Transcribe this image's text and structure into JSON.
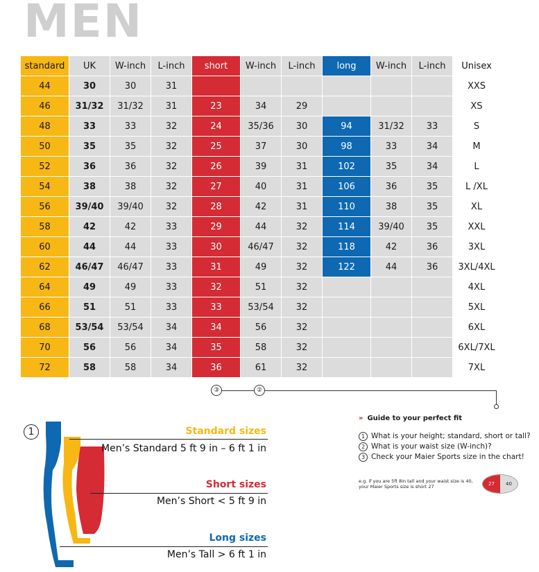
{
  "title": "MEN",
  "table": {
    "headers": [
      "standard",
      "UK",
      "W-inch",
      "L-inch",
      "short",
      "W-inch",
      "L-inch",
      "long",
      "W-inch",
      "L-inch",
      "Unisex"
    ],
    "rows": [
      [
        "44",
        "30",
        "30",
        "31",
        "",
        "",
        "",
        "",
        "",
        "",
        "XXS"
      ],
      [
        "46",
        "31/32",
        "31/32",
        "31",
        "23",
        "34",
        "29",
        "",
        "",
        "",
        "XS"
      ],
      [
        "48",
        "33",
        "33",
        "32",
        "24",
        "35/36",
        "30",
        "94",
        "31/32",
        "33",
        "S"
      ],
      [
        "50",
        "35",
        "35",
        "32",
        "25",
        "37",
        "30",
        "98",
        "33",
        "34",
        "M"
      ],
      [
        "52",
        "36",
        "36",
        "32",
        "26",
        "39",
        "31",
        "102",
        "35",
        "34",
        "L"
      ],
      [
        "54",
        "38",
        "38",
        "32",
        "27",
        "40",
        "31",
        "106",
        "36",
        "35",
        "L /XL"
      ],
      [
        "56",
        "39/40",
        "39/40",
        "32",
        "28",
        "42",
        "31",
        "110",
        "38",
        "35",
        "XL"
      ],
      [
        "58",
        "42",
        "42",
        "33",
        "29",
        "44",
        "32",
        "114",
        "39/40",
        "35",
        "XXL"
      ],
      [
        "60",
        "44",
        "44",
        "33",
        "30",
        "46/47",
        "32",
        "118",
        "42",
        "36",
        "3XL"
      ],
      [
        "62",
        "46/47",
        "46/47",
        "33",
        "31",
        "49",
        "32",
        "122",
        "44",
        "36",
        "3XL/4XL"
      ],
      [
        "64",
        "49",
        "49",
        "33",
        "32",
        "51",
        "32",
        "",
        "",
        "",
        "4XL"
      ],
      [
        "66",
        "51",
        "51",
        "33",
        "33",
        "53/54",
        "32",
        "",
        "",
        "",
        "5XL"
      ],
      [
        "68",
        "53/54",
        "53/54",
        "34",
        "34",
        "56",
        "32",
        "",
        "",
        "",
        "6XL"
      ],
      [
        "70",
        "56",
        "56",
        "34",
        "35",
        "58",
        "32",
        "",
        "",
        "",
        "6XL/7XL"
      ],
      [
        "72",
        "58",
        "58",
        "34",
        "36",
        "61",
        "32",
        "",
        "",
        "",
        "7XL"
      ]
    ]
  },
  "markers": {
    "three": "③",
    "two": "②",
    "one": "1"
  },
  "sizes": {
    "standard_head": "Standard sizes",
    "standard_desc": "Men’s Standard  5 ft 9 in – 6 ft 1 in",
    "short_head": "Short sizes",
    "short_desc": "Men’s Short < 5 ft 9 in",
    "long_head": "Long sizes",
    "long_desc": "Men’s Tall > 6 ft 1 in"
  },
  "guide": {
    "chevron": "»",
    "title": "Guide to your perfect fit",
    "steps": [
      {
        "num": "1",
        "text": "What is your height; standard, short or tall?"
      },
      {
        "num": "2",
        "text": "What is your waist size (W-inch)?"
      },
      {
        "num": "3",
        "text": "Check your Maier Sports size in the chart!"
      }
    ],
    "example_line1": "e.g. if you are 5ft 8in tall and your waist size is 40,",
    "example_line2": "your Maier Sports size is short 27",
    "example_badge_left": "27",
    "example_badge_right": "40"
  },
  "colors": {
    "standard": "#f7b714",
    "short": "#d42b34",
    "long": "#0e68b2",
    "gray": "#dcdcdc",
    "title": "#cfcfcf"
  }
}
